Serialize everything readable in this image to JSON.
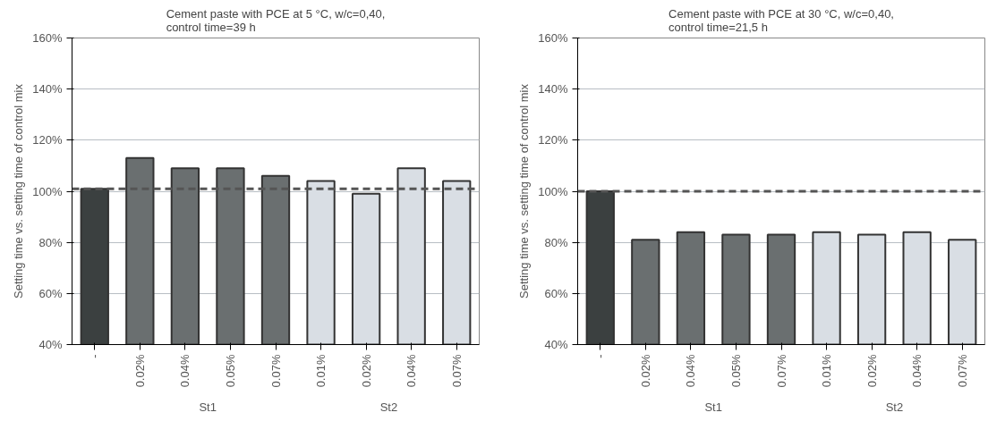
{
  "chart_data": [
    {
      "type": "bar",
      "title": "Cement paste with PCE at 5 °C, w/c=0,40,\ncontrol time=39 h",
      "ylabel": "Setting time vs. setting time of control mix",
      "categories": [
        "-",
        "0.02%",
        "0.04%",
        "0.05%",
        "0.07%",
        "0.01%",
        "0.02%",
        "0.04%",
        "0.07%"
      ],
      "values": [
        101,
        113,
        109,
        109,
        106,
        104,
        99,
        109,
        104
      ],
      "colors": [
        "#3b4040",
        "#6a6f70",
        "#6a6f70",
        "#6a6f70",
        "#6a6f70",
        "#d9dee4",
        "#d9dee4",
        "#d9dee4",
        "#d9dee4"
      ],
      "annotations": [
        "St1",
        "St2"
      ],
      "ylim": [
        40,
        160
      ],
      "yticks": [
        {
          "value": 40,
          "label": "40%"
        },
        {
          "value": 60,
          "label": "60%"
        },
        {
          "value": 80,
          "label": "80%"
        },
        {
          "value": 100,
          "label": "100%"
        },
        {
          "value": 120,
          "label": "120%"
        },
        {
          "value": 140,
          "label": "140%"
        },
        {
          "value": 160,
          "label": "160%"
        }
      ],
      "ref_lines": [
        {
          "axis": "y",
          "value": 101,
          "color": "#555555",
          "line_style": "dashed"
        }
      ],
      "grid": "y"
    },
    {
      "type": "bar",
      "title": "Cement paste with PCE at 30 °C, w/c=0,40,\ncontrol time=21,5 h",
      "ylabel": "Setting time vs. setting time of control mix",
      "categories": [
        "-",
        "0.02%",
        "0.04%",
        "0.05%",
        "0.07%",
        "0.01%",
        "0.02%",
        "0.04%",
        "0.07%"
      ],
      "values": [
        100,
        81,
        84,
        83,
        83,
        84,
        83,
        84,
        81
      ],
      "colors": [
        "#3b4040",
        "#6a6f70",
        "#6a6f70",
        "#6a6f70",
        "#6a6f70",
        "#d9dee4",
        "#d9dee4",
        "#d9dee4",
        "#d9dee4"
      ],
      "annotations": [
        "St1",
        "St2"
      ],
      "ylim": [
        40,
        160
      ],
      "yticks": [
        {
          "value": 40,
          "label": "40%"
        },
        {
          "value": 60,
          "label": "60%"
        },
        {
          "value": 80,
          "label": "80%"
        },
        {
          "value": 100,
          "label": "100%"
        },
        {
          "value": 120,
          "label": "120%"
        },
        {
          "value": 140,
          "label": "140%"
        },
        {
          "value": 160,
          "label": "160%"
        }
      ],
      "ref_lines": [
        {
          "axis": "y",
          "value": 100,
          "color": "#555555",
          "line_style": "dashed"
        }
      ],
      "grid": "y"
    }
  ]
}
